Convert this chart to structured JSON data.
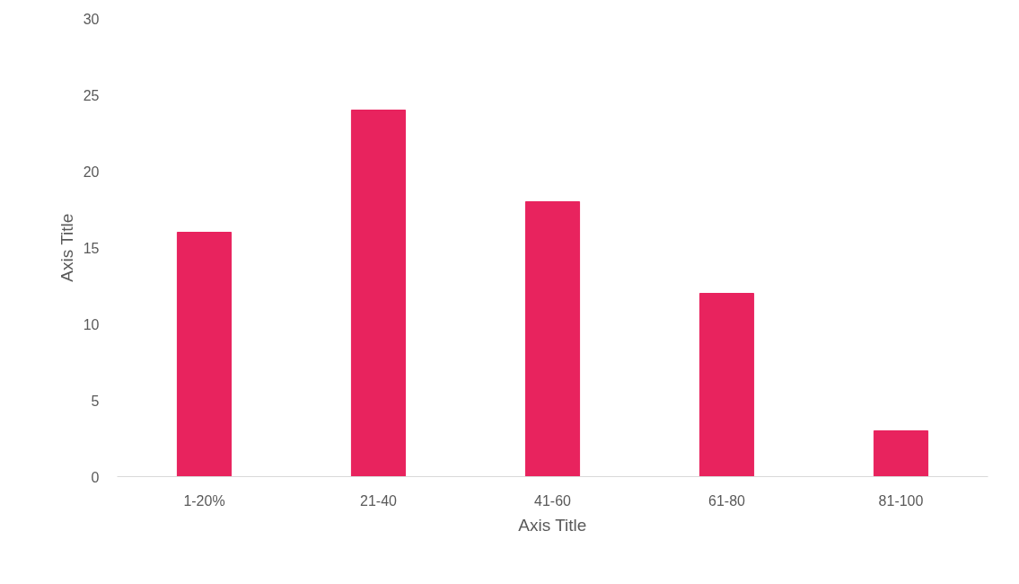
{
  "chart_data": {
    "type": "bar",
    "xlabel": "Axis Title",
    "ylabel": "Axis Title",
    "categories": [
      "1-20%",
      "21-40",
      "41-60",
      "61-80",
      "81-100"
    ],
    "values": [
      16,
      24,
      18,
      12,
      3
    ],
    "color": "#e8235e",
    "ylim": [
      0,
      30
    ],
    "yticks": [
      0,
      5,
      10,
      15,
      20,
      25,
      30
    ],
    "grid": false
  }
}
